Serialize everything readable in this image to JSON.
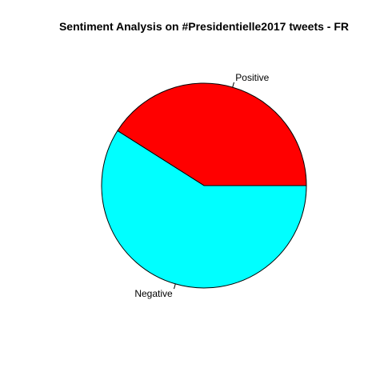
{
  "chart_data": {
    "type": "pie",
    "title": "Sentiment Analysis on #Presidentielle2017 tweets - FR",
    "slices": [
      {
        "label": "Positive",
        "value": 0.41,
        "color": "#ff0000"
      },
      {
        "label": "Negative",
        "value": 0.59,
        "color": "#00ffff"
      }
    ],
    "start_angle_deg": 0,
    "direction": "counterclockwise",
    "border_color": "#000000"
  }
}
